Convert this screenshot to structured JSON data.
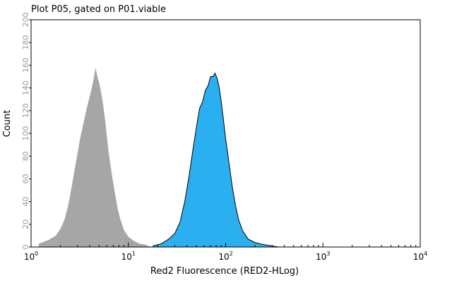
{
  "chart_data": {
    "type": "histogram",
    "title": "Plot P05, gated on P01.viable",
    "xlabel": "Red2 Fluorescence (RED2-HLog)",
    "ylabel": "Count",
    "x_scale": "log",
    "xlim": [
      1,
      10000
    ],
    "ylim": [
      0,
      200
    ],
    "x_ticks": [
      {
        "base": "10",
        "exp": "0",
        "value": 1
      },
      {
        "base": "10",
        "exp": "1",
        "value": 10
      },
      {
        "base": "10",
        "exp": "2",
        "value": 100
      },
      {
        "base": "10",
        "exp": "3",
        "value": 1000
      },
      {
        "base": "10",
        "exp": "4",
        "value": 10000
      }
    ],
    "y_ticks": [
      "0",
      "20",
      "40",
      "60",
      "80",
      "100",
      "120",
      "140",
      "160",
      "180",
      "200"
    ],
    "series": [
      {
        "fill": "#a6a6a6",
        "stroke": "none",
        "x": [
          1.2,
          1.5,
          1.8,
          2.0,
          2.2,
          2.4,
          2.6,
          2.8,
          3.0,
          3.2,
          3.4,
          3.6,
          3.8,
          4.0,
          4.2,
          4.4,
          4.6,
          4.8,
          5.0,
          5.2,
          5.4,
          5.6,
          5.8,
          6.0,
          6.3,
          6.6,
          7.0,
          7.4,
          7.8,
          8.3,
          9.0,
          10.0,
          11.5,
          13.0,
          15.0,
          17.0
        ],
        "y": [
          3,
          6,
          10,
          16,
          24,
          36,
          52,
          68,
          82,
          96,
          106,
          116,
          125,
          132,
          140,
          148,
          158,
          150,
          145,
          138,
          130,
          120,
          110,
          98,
          82,
          70,
          56,
          44,
          33,
          24,
          15,
          9,
          5,
          3,
          2,
          0
        ]
      },
      {
        "fill": "#2ab0f0",
        "stroke": "#000000",
        "x": [
          18,
          22,
          26,
          30,
          34,
          38,
          42,
          46,
          50,
          54,
          58,
          62,
          66,
          70,
          74,
          78,
          82,
          86,
          90,
          95,
          100,
          108,
          116,
          126,
          136,
          150,
          170,
          200,
          250,
          350
        ],
        "y": [
          1,
          3,
          7,
          12,
          22,
          40,
          62,
          85,
          105,
          122,
          128,
          138,
          142,
          150,
          150,
          153,
          148,
          140,
          128,
          112,
          95,
          75,
          55,
          37,
          24,
          14,
          7,
          4,
          2,
          0
        ]
      }
    ]
  }
}
